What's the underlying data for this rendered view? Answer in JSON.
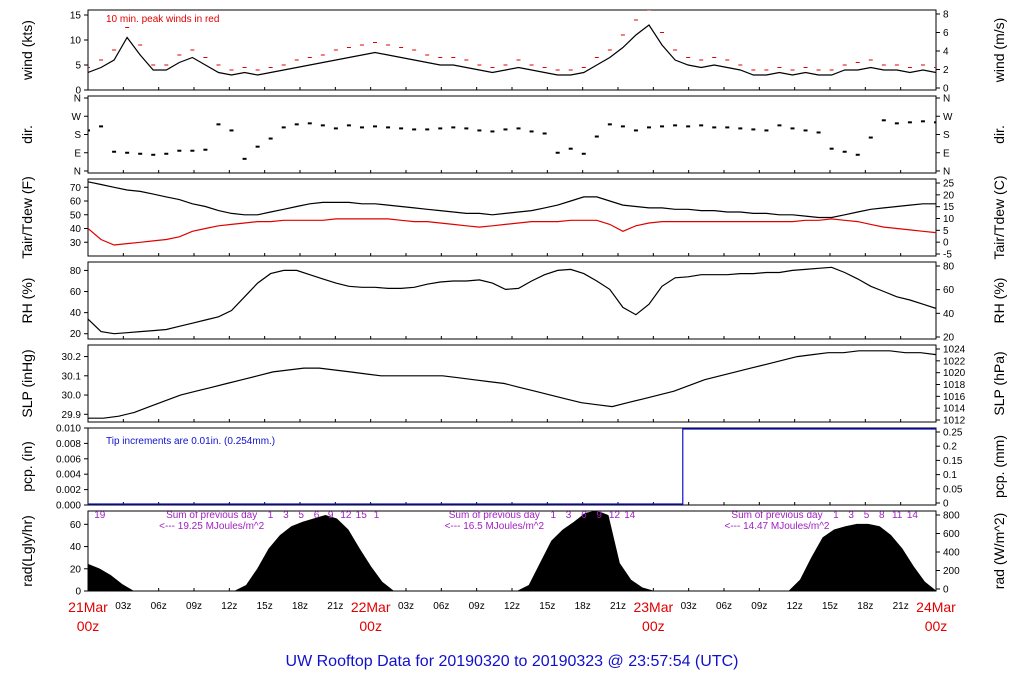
{
  "title": "UW Rooftop Data for 20190320  to  20190323 @ 23:57:54  (UTC)",
  "time_axis": {
    "hour_labels": [
      "03z",
      "06z",
      "09z",
      "12z",
      "15z",
      "18z",
      "21z"
    ],
    "days": [
      {
        "date": "21Mar",
        "hour": "00z"
      },
      {
        "date": "22Mar",
        "hour": "00z"
      },
      {
        "date": "23Mar",
        "hour": "00z"
      },
      {
        "date": "24Mar",
        "hour": "00z"
      }
    ],
    "day_label_color": "#e00000"
  },
  "colors": {
    "main": "#000000",
    "peak": "#e00000",
    "dewpoint": "#e00000",
    "precip": "#1010cc",
    "solar_annot": "#a020c0",
    "title": "#1010cc"
  },
  "chart_data": [
    {
      "id": "wind",
      "type": "line",
      "ylabel_left": "wind (kts)",
      "ylabel_right": "wind (m/s)",
      "ylim": [
        0,
        16
      ],
      "left_ticks": [
        "0",
        "5",
        "10",
        "15"
      ],
      "right_ticks": [
        "0",
        "2",
        "4",
        "6",
        "8"
      ],
      "annotation": "10 min. peak winds in red",
      "series": [
        {
          "values": [
            3.5,
            4.5,
            6,
            10.5,
            7,
            4,
            4,
            5.5,
            6.5,
            5,
            3.5,
            3,
            3.5,
            3,
            3.5,
            4,
            4.5,
            5,
            5.5,
            6,
            6.5,
            7,
            7.5,
            7,
            6.5,
            6,
            5.5,
            5,
            5,
            4.5,
            4,
            3.5,
            4,
            4.5,
            4,
            3.5,
            3,
            3,
            3.5,
            5,
            6.5,
            8.5,
            11,
            13,
            9,
            6,
            5,
            4.5,
            5,
            4.5,
            4,
            3,
            3,
            3.5,
            3,
            3.5,
            3,
            3,
            4,
            4,
            4.5,
            4,
            4,
            3.5,
            4,
            3.5
          ]
        },
        {
          "values": [
            4.5,
            6,
            8,
            12.5,
            9,
            5,
            5,
            7,
            8,
            6.5,
            5,
            4,
            4.5,
            4,
            4.5,
            5,
            6,
            6.5,
            7,
            8,
            8.5,
            9,
            9.5,
            9,
            8.5,
            8,
            7,
            6.5,
            6.5,
            6,
            5,
            4.5,
            5,
            6,
            5,
            4.5,
            4,
            4,
            4.5,
            6.5,
            8,
            11,
            14,
            16,
            11.5,
            8,
            6.5,
            6,
            6.5,
            6,
            5,
            4,
            4,
            4.5,
            4,
            4.5,
            4,
            4,
            5,
            5.5,
            6,
            5,
            5,
            4.5,
            5,
            4.5
          ]
        }
      ]
    },
    {
      "id": "direction",
      "type": "scatter",
      "ylabel_left": "dir.",
      "ylabel_right": "dir.",
      "left_ticks": [
        "N",
        "E",
        "S",
        "W",
        "N"
      ],
      "right_ticks": [
        "N",
        "E",
        "S",
        "W",
        "N"
      ],
      "ylim": [
        0,
        360
      ],
      "series": [
        {
          "values": [
            200,
            220,
            95,
            90,
            85,
            80,
            85,
            100,
            100,
            105,
            230,
            200,
            60,
            120,
            160,
            215,
            230,
            235,
            225,
            210,
            225,
            215,
            220,
            215,
            210,
            205,
            205,
            210,
            215,
            210,
            200,
            195,
            205,
            210,
            195,
            185,
            90,
            110,
            85,
            170,
            230,
            220,
            200,
            215,
            220,
            225,
            220,
            225,
            215,
            215,
            210,
            205,
            200,
            225,
            210,
            200,
            190,
            110,
            95,
            80,
            165,
            250,
            235,
            240,
            245,
            240
          ]
        }
      ]
    },
    {
      "id": "temperature",
      "type": "line",
      "ylabel_left": "Tair/Tdew (F)",
      "ylabel_right": "Tair/Tdew (C)",
      "ylim": [
        20,
        76
      ],
      "left_ticks": [
        "30",
        "40",
        "50",
        "60",
        "70"
      ],
      "right_ticks": [
        "-5",
        "0",
        "5",
        "10",
        "15",
        "20",
        "25"
      ],
      "series": [
        {
          "values": [
            74,
            72,
            70,
            68,
            67,
            65,
            63,
            61,
            58,
            56,
            53,
            51,
            50,
            50,
            52,
            54,
            56,
            58,
            59,
            59,
            59,
            58,
            58,
            57,
            56,
            55,
            54,
            53,
            52,
            51,
            51,
            50,
            51,
            52,
            53,
            55,
            57,
            60,
            63,
            63,
            60,
            57,
            56,
            55,
            55,
            54,
            54,
            53,
            53,
            52,
            52,
            51,
            51,
            50,
            50,
            49,
            48,
            48,
            50,
            52,
            54,
            55,
            56,
            57,
            58,
            58
          ]
        },
        {
          "values": [
            40,
            32,
            28,
            29,
            30,
            31,
            32,
            34,
            38,
            40,
            42,
            43,
            44,
            45,
            45,
            46,
            46,
            46,
            46,
            47,
            47,
            47,
            47,
            47,
            46,
            45,
            45,
            44,
            43,
            42,
            41,
            42,
            43,
            44,
            45,
            45,
            45,
            46,
            46,
            46,
            43,
            38,
            42,
            44,
            45,
            45,
            45,
            45,
            45,
            45,
            45,
            45,
            45,
            45,
            45,
            46,
            46,
            47,
            46,
            45,
            43,
            41,
            40,
            39,
            38,
            37
          ]
        }
      ]
    },
    {
      "id": "humidity",
      "type": "line",
      "ylabel_left": "RH (%)",
      "ylabel_right": "RH (%)",
      "ylim": [
        15,
        88
      ],
      "left_ticks": [
        "20",
        "40",
        "60",
        "80"
      ],
      "right_ticks": [
        "20",
        "40",
        "60",
        "80"
      ],
      "series": [
        {
          "values": [
            34,
            22,
            20,
            21,
            22,
            23,
            24,
            27,
            30,
            33,
            36,
            42,
            55,
            68,
            77,
            80,
            80,
            76,
            72,
            68,
            65,
            64,
            64,
            63,
            63,
            64,
            67,
            69,
            70,
            70,
            71,
            68,
            62,
            63,
            70,
            76,
            80,
            81,
            77,
            70,
            62,
            45,
            38,
            48,
            65,
            73,
            74,
            76,
            76,
            76,
            77,
            77,
            78,
            78,
            80,
            81,
            82,
            83,
            78,
            72,
            65,
            60,
            55,
            52,
            48,
            44
          ]
        }
      ]
    },
    {
      "id": "pressure",
      "type": "line",
      "ylabel_left": "SLP (inHg)",
      "ylabel_right": "SLP (hPa)",
      "ylim": [
        29.86,
        30.26
      ],
      "left_ticks": [
        "29.9",
        "30.0",
        "30.1",
        "30.2"
      ],
      "right_ticks": [
        "1012",
        "1014",
        "1016",
        "1018",
        "1020",
        "1022",
        "1024"
      ],
      "series": [
        {
          "values": [
            29.88,
            29.88,
            29.89,
            29.91,
            29.94,
            29.97,
            30.0,
            30.02,
            30.04,
            30.06,
            30.08,
            30.1,
            30.12,
            30.13,
            30.14,
            30.14,
            30.13,
            30.12,
            30.11,
            30.1,
            30.1,
            30.1,
            30.1,
            30.1,
            30.09,
            30.08,
            30.07,
            30.06,
            30.04,
            30.02,
            30.0,
            29.98,
            29.96,
            29.95,
            29.94,
            29.96,
            29.98,
            30.0,
            30.02,
            30.05,
            30.08,
            30.1,
            30.12,
            30.14,
            30.16,
            30.18,
            30.2,
            30.21,
            30.22,
            30.22,
            30.23,
            30.23,
            30.23,
            30.22,
            30.22,
            30.21
          ]
        }
      ]
    },
    {
      "id": "precipitation",
      "type": "line",
      "ylabel_left": "pcp. (in)",
      "ylabel_right": "pcp. (mm)",
      "ylim": [
        0,
        0.01
      ],
      "left_ticks": [
        "0.000",
        "0.002",
        "0.004",
        "0.006",
        "0.008",
        "0.010"
      ],
      "right_ticks": [
        "0",
        "0.05",
        "0.1",
        "0.15",
        "0.2",
        "0.25"
      ],
      "annotation": "Tip increments are 0.01in. (0.254mm.)",
      "step_hour": 50.5,
      "before": 0,
      "after": 0.01
    },
    {
      "id": "radiation",
      "type": "area",
      "ylabel_left": "rad(Lgly/hr)",
      "ylabel_right": "rad (W/m^2)",
      "ylim": [
        0,
        72
      ],
      "left_ticks": [
        "0",
        "20",
        "40",
        "60"
      ],
      "right_ticks": [
        "0",
        "200",
        "400",
        "600",
        "800"
      ],
      "day_sums": [
        {
          "label": "Sum of previous day",
          "value": "<--- 19.25 MJoules/m^2"
        },
        {
          "label": "Sum of previous day",
          "value": "<--- 16.5 MJoules/m^2"
        },
        {
          "label": "Sum of previous day",
          "value": "<--- 14.47 MJoules/m^2"
        }
      ],
      "hour_marks": [
        {
          "hour": 1,
          "label": "19"
        },
        {
          "hour": 15.5,
          "label": "1"
        },
        {
          "hour": 16.8,
          "label": "3"
        },
        {
          "hour": 18.1,
          "label": "5"
        },
        {
          "hour": 19.4,
          "label": "6"
        },
        {
          "hour": 20.6,
          "label": "9"
        },
        {
          "hour": 21.9,
          "label": "12"
        },
        {
          "hour": 23.2,
          "label": "15"
        },
        {
          "hour": 24.5,
          "label": "1"
        },
        {
          "hour": 39.5,
          "label": "1"
        },
        {
          "hour": 40.8,
          "label": "3"
        },
        {
          "hour": 42.1,
          "label": "6"
        },
        {
          "hour": 43.4,
          "label": "9"
        },
        {
          "hour": 44.7,
          "label": "12"
        },
        {
          "hour": 46.0,
          "label": "14"
        },
        {
          "hour": 63.5,
          "label": "1"
        },
        {
          "hour": 64.8,
          "label": "3"
        },
        {
          "hour": 66.1,
          "label": "5"
        },
        {
          "hour": 67.4,
          "label": "8"
        },
        {
          "hour": 68.7,
          "label": "11"
        },
        {
          "hour": 70.0,
          "label": "14"
        }
      ],
      "series": [
        {
          "values": [
            24,
            20,
            14,
            6,
            0,
            0,
            0,
            0,
            0,
            0,
            0,
            0,
            0,
            0,
            5,
            20,
            38,
            50,
            58,
            62,
            65,
            68,
            65,
            55,
            38,
            22,
            8,
            0,
            0,
            0,
            0,
            0,
            0,
            0,
            0,
            0,
            0,
            0,
            0,
            5,
            25,
            45,
            55,
            62,
            70,
            72,
            68,
            25,
            10,
            3,
            0,
            0,
            0,
            0,
            0,
            0,
            0,
            0,
            0,
            0,
            0,
            0,
            0,
            10,
            30,
            48,
            55,
            58,
            60,
            60,
            58,
            50,
            38,
            22,
            8,
            0
          ]
        }
      ]
    }
  ]
}
